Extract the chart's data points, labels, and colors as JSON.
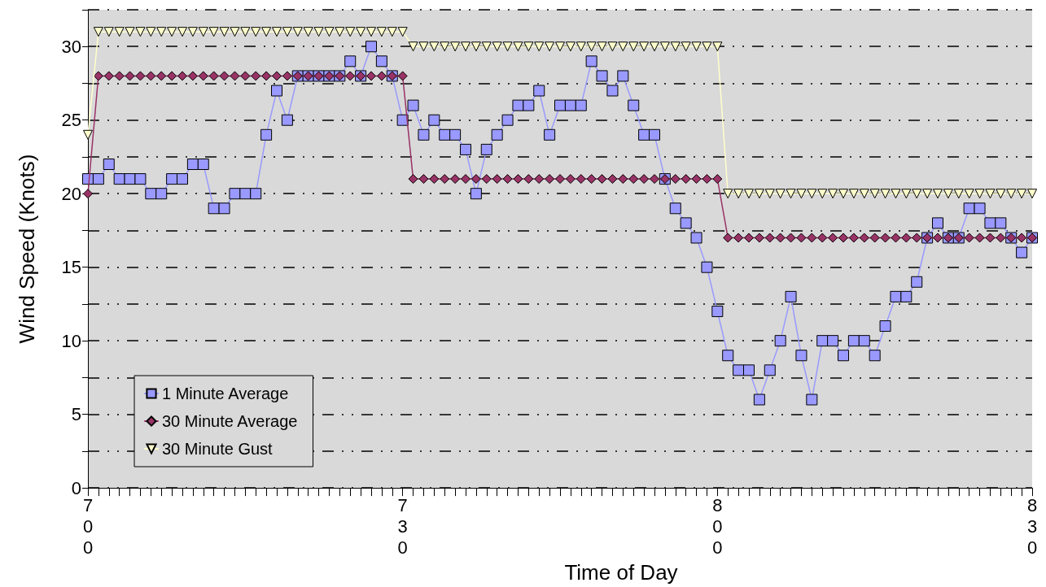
{
  "chart_data": {
    "type": "line",
    "xlabel": "Time of Day",
    "ylabel": "Wind Speed (Knots)",
    "categories": [
      "700",
      null,
      null,
      null,
      null,
      null,
      null,
      null,
      null,
      null,
      null,
      null,
      null,
      null,
      null,
      null,
      null,
      null,
      null,
      null,
      null,
      null,
      null,
      null,
      null,
      null,
      null,
      null,
      null,
      null,
      "730",
      null,
      null,
      null,
      null,
      null,
      null,
      null,
      null,
      null,
      null,
      null,
      null,
      null,
      null,
      null,
      null,
      null,
      null,
      null,
      null,
      null,
      null,
      null,
      null,
      null,
      null,
      null,
      null,
      null,
      "800",
      null,
      null,
      null,
      null,
      null,
      null,
      null,
      null,
      null,
      null,
      null,
      null,
      null,
      null,
      null,
      null,
      null,
      null,
      null,
      null,
      null,
      null,
      null,
      null,
      null,
      null,
      null,
      null,
      null,
      "830"
    ],
    "ylim": [
      0,
      32.5
    ],
    "yticks": [
      0,
      {
        "value": 2.5,
        "label": null
      },
      5,
      {
        "value": 7.5,
        "label": null
      },
      10,
      {
        "value": 12.5,
        "label": null
      },
      15,
      {
        "value": 17.5,
        "label": null
      },
      20,
      {
        "value": 22.5,
        "label": null
      },
      25,
      {
        "value": 27.5,
        "label": null
      },
      30,
      {
        "value": 32.5,
        "label": null
      }
    ],
    "grid": "y",
    "legend": "bottom left",
    "line_style": "solid",
    "series": [
      {
        "name": "1 Minute Average",
        "color": "#9999ff",
        "marker": "square",
        "values": [
          21,
          21,
          22,
          21,
          21,
          21,
          20,
          20,
          21,
          21,
          22,
          22,
          19,
          19,
          20,
          20,
          20,
          24,
          27,
          25,
          28,
          28,
          28,
          28,
          28,
          29,
          28,
          30,
          29,
          28,
          25,
          26,
          24,
          25,
          24,
          24,
          23,
          20,
          23,
          24,
          25,
          26,
          26,
          27,
          24,
          26,
          26,
          26,
          29,
          28,
          27,
          28,
          26,
          24,
          24,
          21,
          19,
          18,
          17,
          15,
          12,
          9,
          8,
          8,
          6,
          8,
          10,
          13,
          9,
          6,
          10,
          10,
          9,
          10,
          10,
          9,
          11,
          13,
          13,
          14,
          17,
          18,
          17,
          17,
          19,
          19,
          18,
          18,
          17,
          16,
          17
        ]
      },
      {
        "name": "30 Minute Average",
        "color": "#993366",
        "marker": "diamond",
        "values": [
          20,
          28,
          28,
          28,
          28,
          28,
          28,
          28,
          28,
          28,
          28,
          28,
          28,
          28,
          28,
          28,
          28,
          28,
          28,
          28,
          28,
          28,
          28,
          28,
          28,
          28,
          28,
          28,
          28,
          28,
          28,
          21,
          21,
          21,
          21,
          21,
          21,
          21,
          21,
          21,
          21,
          21,
          21,
          21,
          21,
          21,
          21,
          21,
          21,
          21,
          21,
          21,
          21,
          21,
          21,
          21,
          21,
          21,
          21,
          21,
          21,
          17,
          17,
          17,
          17,
          17,
          17,
          17,
          17,
          17,
          17,
          17,
          17,
          17,
          17,
          17,
          17,
          17,
          17,
          17,
          17,
          17,
          17,
          17,
          17,
          17,
          17,
          17,
          17,
          17,
          17
        ]
      },
      {
        "name": "30 Minute Gust",
        "color": "#ffffcc",
        "marker": "triangle",
        "values": [
          24,
          31,
          31,
          31,
          31,
          31,
          31,
          31,
          31,
          31,
          31,
          31,
          31,
          31,
          31,
          31,
          31,
          31,
          31,
          31,
          31,
          31,
          31,
          31,
          31,
          31,
          31,
          31,
          31,
          31,
          31,
          30,
          30,
          30,
          30,
          30,
          30,
          30,
          30,
          30,
          30,
          30,
          30,
          30,
          30,
          30,
          30,
          30,
          30,
          30,
          30,
          30,
          30,
          30,
          30,
          30,
          30,
          30,
          30,
          30,
          30,
          20,
          20,
          20,
          20,
          20,
          20,
          20,
          20,
          20,
          20,
          20,
          20,
          20,
          20,
          20,
          20,
          20,
          20,
          20,
          20,
          20,
          20,
          20,
          20,
          20,
          20,
          20,
          20,
          20,
          20
        ]
      }
    ]
  }
}
